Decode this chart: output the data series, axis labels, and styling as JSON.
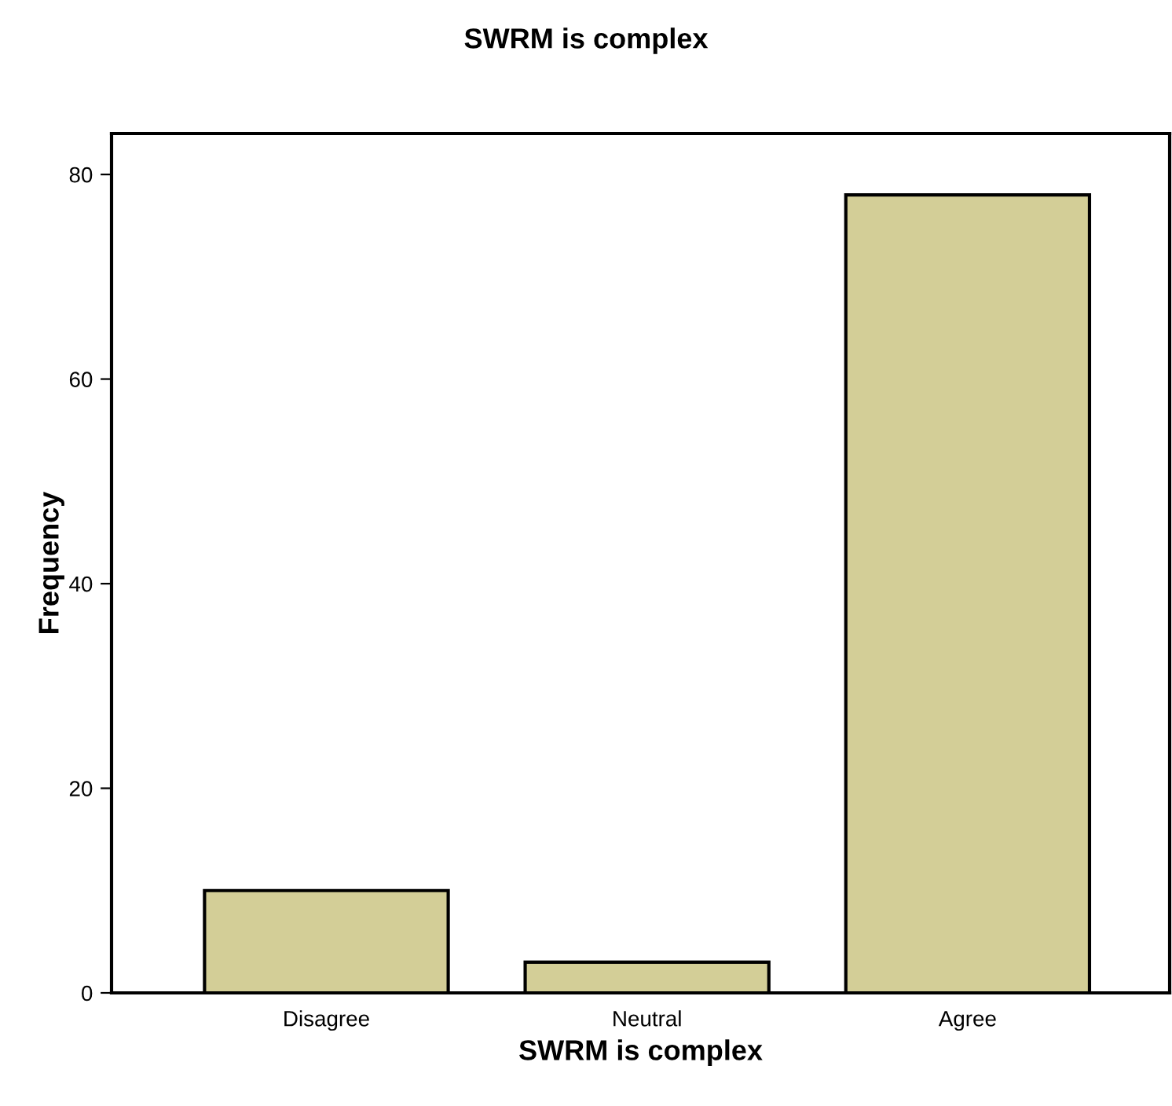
{
  "chart_data": {
    "type": "bar",
    "title": "SWRM is complex",
    "xlabel": "SWRM is complex",
    "ylabel": "Frequency",
    "categories": [
      "Disagree",
      "Neutral",
      "Agree"
    ],
    "values": [
      10,
      3,
      78
    ],
    "color": "#d3ce97",
    "ylim": [
      0,
      84
    ],
    "yticks": [
      0,
      20,
      40,
      60,
      80
    ],
    "grid": false,
    "legend": false
  }
}
